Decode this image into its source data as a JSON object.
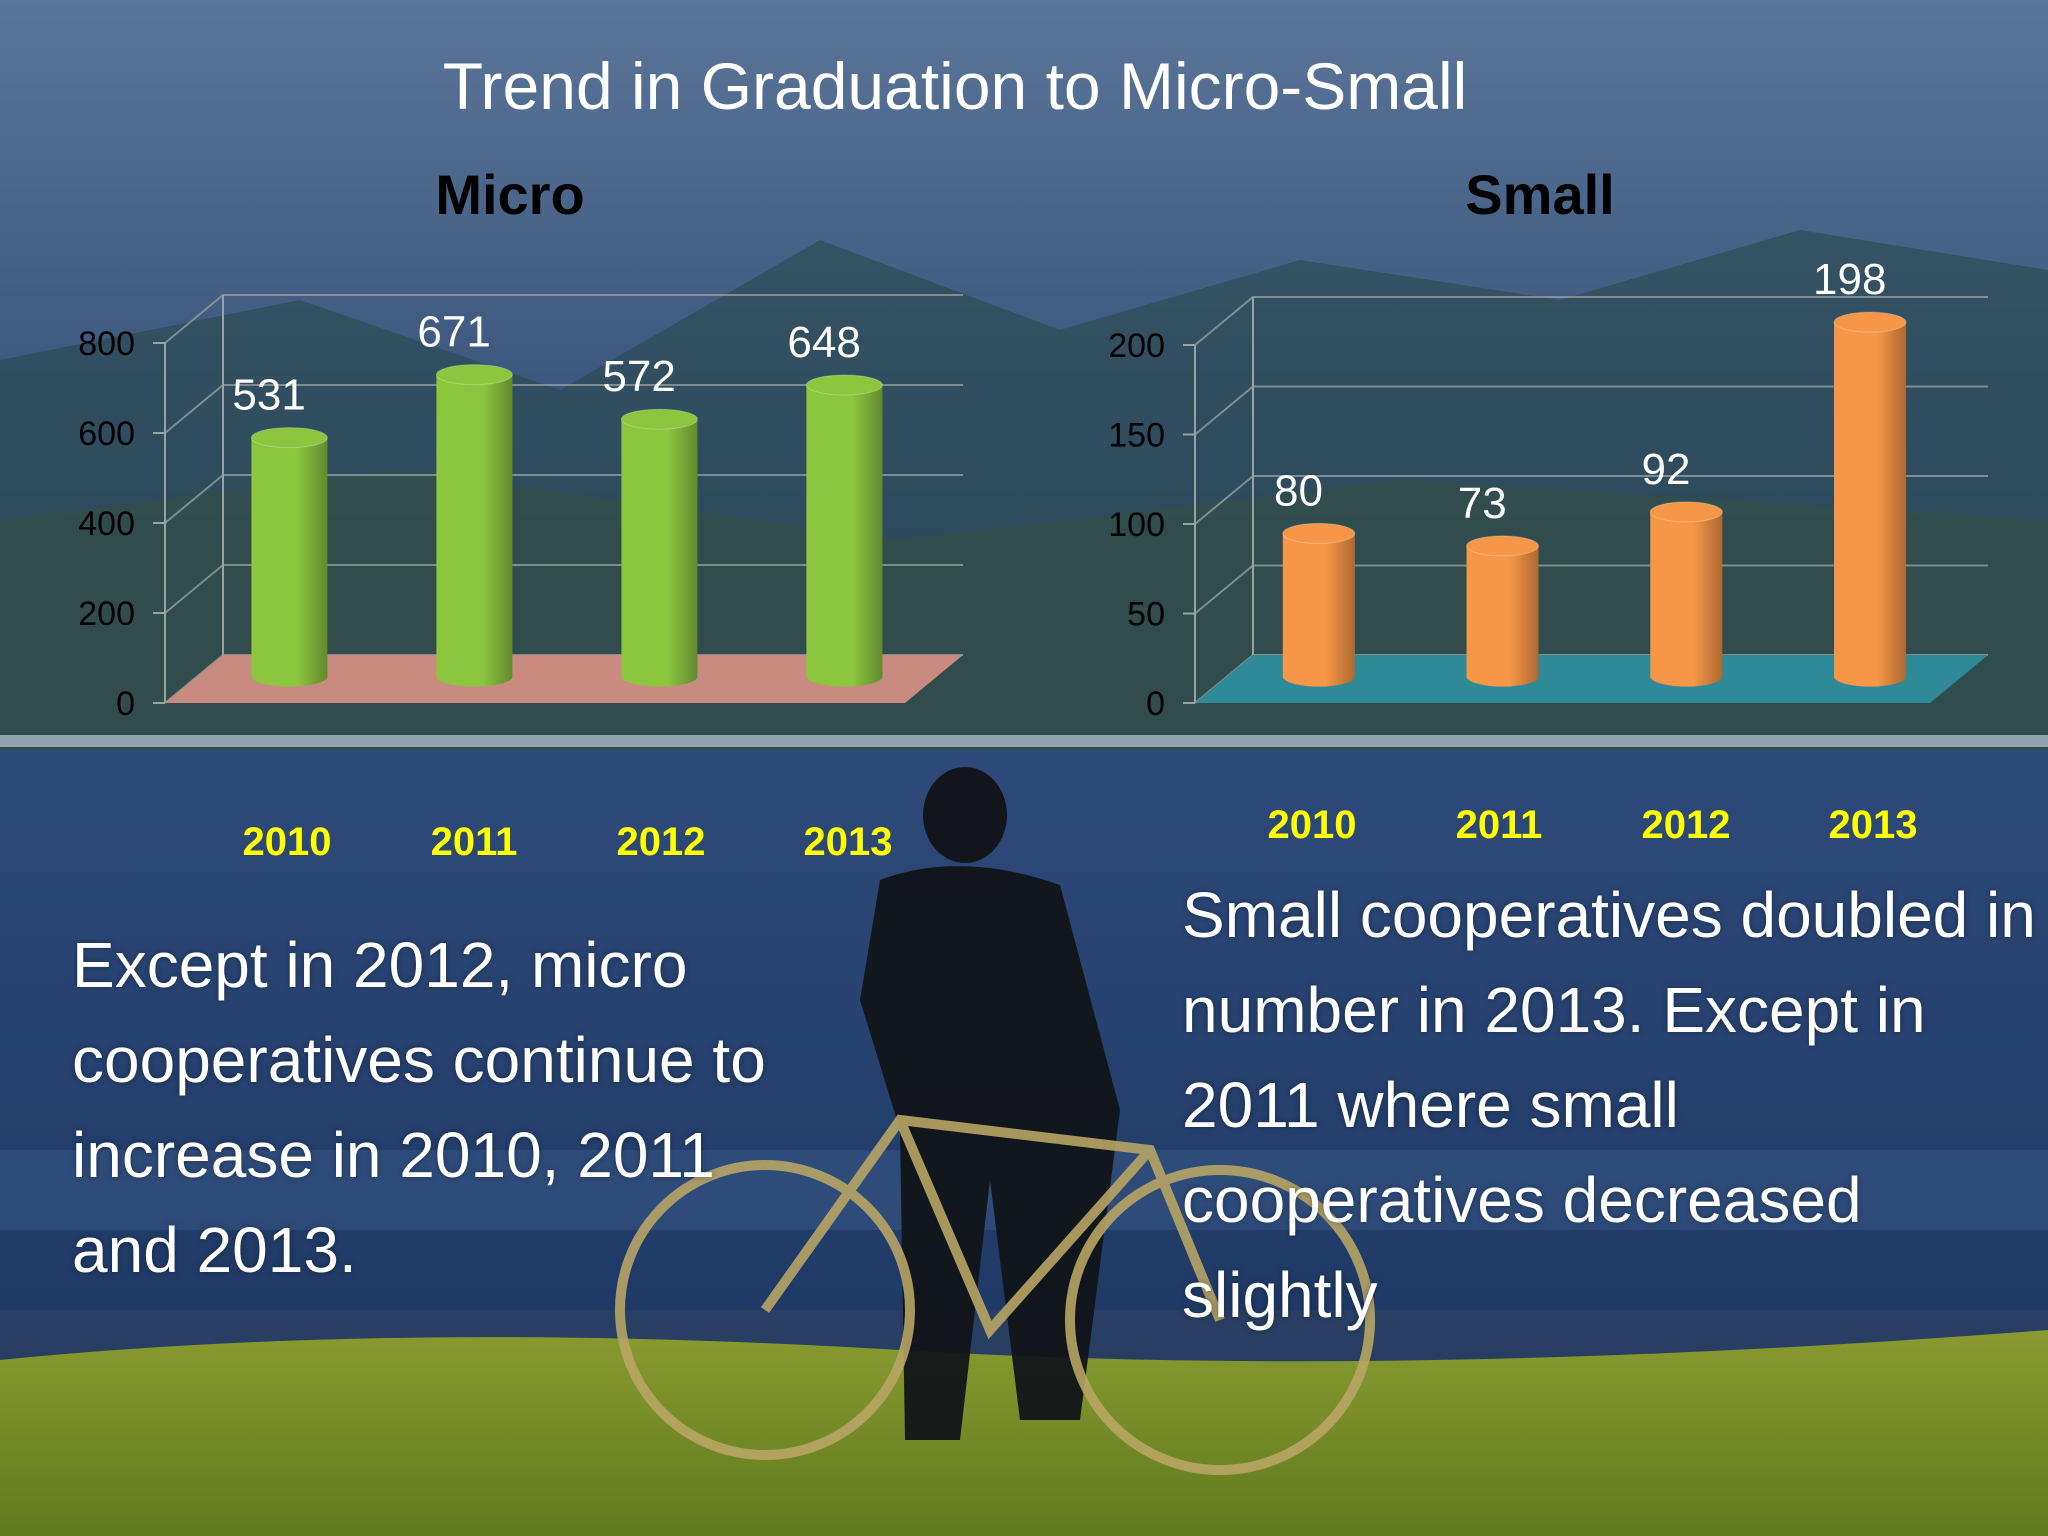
{
  "slide": {
    "title": "Trend in Graduation to  Micro-Small",
    "note_micro": "Except in 2012, micro cooperatives  continue to increase in 2010, 2011 and 2013.",
    "note_small": "Small cooperatives doubled in number  in 2013.  Except in 2011 where small cooperatives decreased slightly"
  },
  "chart_data": [
    {
      "type": "bar",
      "title": "Micro",
      "categories": [
        "2010",
        "2011",
        "2012",
        "2013"
      ],
      "values": [
        531,
        671,
        572,
        648
      ],
      "ylim": [
        0,
        800
      ],
      "yticks": [
        0,
        200,
        400,
        600,
        800
      ],
      "bar_color": "#8cc63f",
      "floor_color": "#c98a80",
      "category_color": "#ffff00",
      "grid": true
    },
    {
      "type": "bar",
      "title": "Small",
      "categories": [
        "2010",
        "2011",
        "2012",
        "2013"
      ],
      "values": [
        80,
        73,
        92,
        198
      ],
      "ylim": [
        0,
        200
      ],
      "yticks": [
        0,
        50,
        100,
        150,
        200
      ],
      "bar_color": "#f79646",
      "floor_color": "#2e8a96",
      "category_color": "#ffff00",
      "grid": true
    }
  ]
}
